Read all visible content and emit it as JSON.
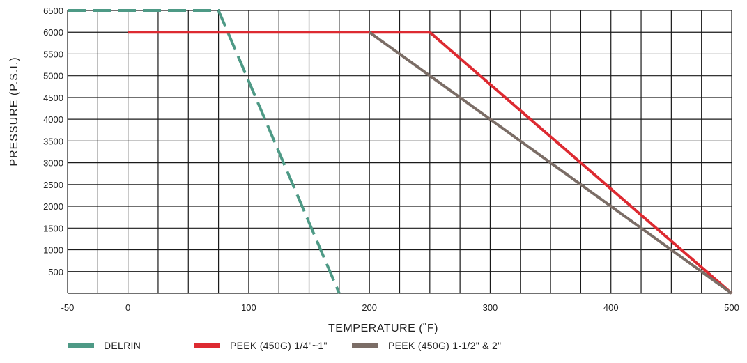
{
  "chart_data": {
    "type": "line",
    "xlabel": "TEMPERATURE (˚F)",
    "ylabel": "PRESSURE (P.S.I.)",
    "xlim": [
      -50,
      500
    ],
    "ylim": [
      0,
      6500
    ],
    "x_ticks": [
      "-50",
      "0",
      "100",
      "200",
      "300",
      "400",
      "500"
    ],
    "x_tick_values": [
      -50,
      0,
      100,
      200,
      300,
      400,
      500
    ],
    "y_ticks": [
      "500",
      "1000",
      "1500",
      "2000",
      "2500",
      "3000",
      "3500",
      "4000",
      "4500",
      "5000",
      "5500",
      "6000",
      "6500"
    ],
    "y_tick_values": [
      500,
      1000,
      1500,
      2000,
      2500,
      3000,
      3500,
      4000,
      4500,
      5000,
      5500,
      6000,
      6500
    ],
    "grid": true,
    "legend_position": "bottom",
    "series": [
      {
        "name": "DELRIN",
        "color": "#4e9a86",
        "style": "dashed",
        "x": [
          -50,
          75,
          175
        ],
        "y": [
          6500,
          6500,
          0
        ]
      },
      {
        "name": "PEEK (450G) 1/4\"~1\"",
        "color": "#dd2a31",
        "style": "solid",
        "x": [
          0,
          250,
          500
        ],
        "y": [
          6000,
          6000,
          0
        ]
      },
      {
        "name": "PEEK (450G) 1-1/2\" & 2\"",
        "color": "#7b6d66",
        "style": "solid",
        "x": [
          200,
          500
        ],
        "y": [
          6000,
          0
        ]
      }
    ]
  }
}
